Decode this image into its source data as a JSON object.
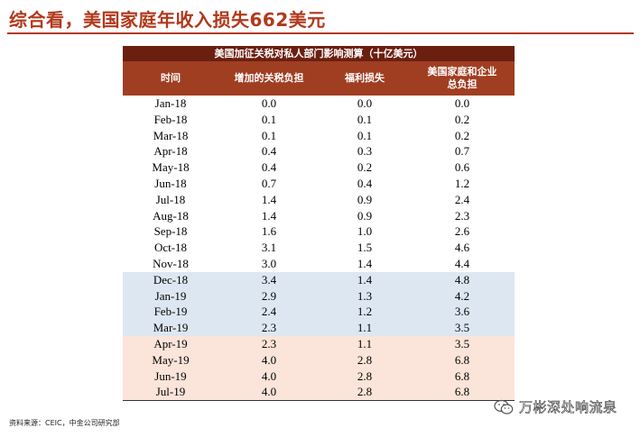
{
  "header": {
    "title": "综合看，美国家庭年收入损失662美元"
  },
  "table": {
    "caption": "美国加征关税对私人部门影响测算（十亿美元）",
    "columns": [
      "时间",
      "增加的关税负担",
      "福利损失",
      "美国家庭和企业总负担"
    ],
    "rows": [
      {
        "time": "Jan-18",
        "tariff": "0.0",
        "welfare": "0.0",
        "total": "0.0"
      },
      {
        "time": "Feb-18",
        "tariff": "0.1",
        "welfare": "0.1",
        "total": "0.2"
      },
      {
        "time": "Mar-18",
        "tariff": "0.1",
        "welfare": "0.1",
        "total": "0.2"
      },
      {
        "time": "Apr-18",
        "tariff": "0.4",
        "welfare": "0.3",
        "total": "0.7"
      },
      {
        "time": "May-18",
        "tariff": "0.4",
        "welfare": "0.2",
        "total": "0.6"
      },
      {
        "time": "Jun-18",
        "tariff": "0.7",
        "welfare": "0.4",
        "total": "1.2"
      },
      {
        "time": "Jul-18",
        "tariff": "1.4",
        "welfare": "0.9",
        "total": "2.4"
      },
      {
        "time": "Aug-18",
        "tariff": "1.4",
        "welfare": "0.9",
        "total": "2.3"
      },
      {
        "time": "Sep-18",
        "tariff": "1.6",
        "welfare": "1.0",
        "total": "2.6"
      },
      {
        "time": "Oct-18",
        "tariff": "3.1",
        "welfare": "1.5",
        "total": "4.6"
      },
      {
        "time": "Nov-18",
        "tariff": "3.0",
        "welfare": "1.4",
        "total": "4.4"
      },
      {
        "time": "Dec-18",
        "tariff": "3.4",
        "welfare": "1.4",
        "total": "4.8"
      },
      {
        "time": "Jan-19",
        "tariff": "2.9",
        "welfare": "1.3",
        "total": "4.2"
      },
      {
        "time": "Feb-19",
        "tariff": "2.4",
        "welfare": "1.2",
        "total": "3.6"
      },
      {
        "time": "Mar-19",
        "tariff": "2.3",
        "welfare": "1.1",
        "total": "3.5"
      },
      {
        "time": "Apr-19",
        "tariff": "2.3",
        "welfare": "1.1",
        "total": "3.5"
      },
      {
        "time": "May-19",
        "tariff": "4.0",
        "welfare": "2.8",
        "total": "6.8"
      },
      {
        "time": "Jun-19",
        "tariff": "4.0",
        "welfare": "2.8",
        "total": "6.8"
      },
      {
        "time": "Jul-19",
        "tariff": "4.0",
        "welfare": "2.8",
        "total": "6.8"
      }
    ]
  },
  "footer": {
    "source": "资料来源：CEIC，中金公司研究部",
    "watermark": "万彬深处响流泉"
  },
  "colors": {
    "title_red": "#b2381b",
    "caption_bg": "#6b1f10",
    "header_bg": "#a03e22",
    "band_blue": "#dde7f2",
    "band_pink": "#fbe4d9"
  }
}
